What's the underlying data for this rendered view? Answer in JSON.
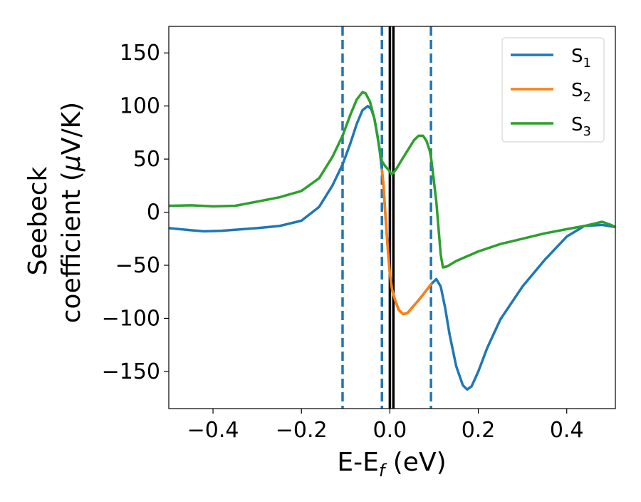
{
  "chart_data": {
    "type": "line",
    "xlabel": {
      "main": "E-E",
      "sub": "f",
      "unit": " (eV)"
    },
    "ylabel": {
      "line1": "Seebeck",
      "line2_pre": "coefficient  (",
      "mu": "μ",
      "line2_post": "V/K)"
    },
    "xlim": [
      -0.5,
      0.51
    ],
    "ylim": [
      -185,
      175
    ],
    "xticks": [
      -0.4,
      -0.2,
      0.0,
      0.2,
      0.4
    ],
    "xtick_labels": [
      "−0.4",
      "−0.2",
      "0.0",
      "0.2",
      "0.4"
    ],
    "yticks": [
      150,
      100,
      50,
      0,
      -50,
      -100,
      -150
    ],
    "ytick_labels": [
      "150",
      "100",
      "50",
      "0",
      "−50",
      "−100",
      "−150"
    ],
    "grid": false,
    "legend_placement": "top-right",
    "vertical_lines": [
      {
        "x": -0.107,
        "style": "dashed",
        "color": "#1f77b4"
      },
      {
        "x": -0.018,
        "style": "dashed",
        "color": "#1f77b4"
      },
      {
        "x": 0.0,
        "style": "solid",
        "color": "#000000"
      },
      {
        "x": 0.008,
        "style": "solid",
        "color": "#000000"
      },
      {
        "x": 0.093,
        "style": "dashed",
        "color": "#1f77b4"
      }
    ],
    "series": [
      {
        "name": "S",
        "sub": "1",
        "color": "#1f77b4",
        "points": [
          [
            -0.5,
            -15
          ],
          [
            -0.45,
            -17
          ],
          [
            -0.42,
            -18
          ],
          [
            -0.38,
            -17.5
          ],
          [
            -0.3,
            -15
          ],
          [
            -0.25,
            -13
          ],
          [
            -0.2,
            -8
          ],
          [
            -0.16,
            5
          ],
          [
            -0.13,
            25
          ],
          [
            -0.107,
            45
          ],
          [
            -0.09,
            64
          ],
          [
            -0.075,
            83
          ],
          [
            -0.062,
            96
          ],
          [
            -0.05,
            100
          ],
          [
            -0.042,
            97
          ],
          [
            -0.035,
            88
          ],
          [
            -0.028,
            72
          ],
          [
            -0.022,
            55
          ],
          [
            -0.018,
            40
          ],
          [
            -0.015,
            28
          ],
          [
            -0.012,
            10
          ],
          [
            -0.008,
            -15
          ],
          [
            -0.004,
            -38
          ],
          [
            0.0,
            -58
          ],
          [
            0.005,
            -73
          ],
          [
            0.012,
            -83
          ],
          [
            0.02,
            -92
          ],
          [
            0.03,
            -96
          ],
          [
            0.04,
            -95
          ],
          [
            0.05,
            -90
          ],
          [
            0.065,
            -83
          ],
          [
            0.08,
            -75
          ],
          [
            0.093,
            -68
          ],
          [
            0.105,
            -63
          ],
          [
            0.115,
            -70
          ],
          [
            0.125,
            -90
          ],
          [
            0.135,
            -115
          ],
          [
            0.15,
            -145
          ],
          [
            0.165,
            -163
          ],
          [
            0.175,
            -167
          ],
          [
            0.185,
            -164
          ],
          [
            0.2,
            -150
          ],
          [
            0.22,
            -128
          ],
          [
            0.25,
            -101
          ],
          [
            0.3,
            -70
          ],
          [
            0.35,
            -45
          ],
          [
            0.4,
            -23
          ],
          [
            0.44,
            -13
          ],
          [
            0.48,
            -12
          ],
          [
            0.51,
            -14
          ]
        ]
      },
      {
        "name": "S",
        "sub": "2",
        "color": "#ff7f0e",
        "points": [
          [
            -0.018,
            40
          ],
          [
            -0.015,
            28
          ],
          [
            -0.012,
            10
          ],
          [
            -0.008,
            -15
          ],
          [
            -0.004,
            -38
          ],
          [
            0.0,
            -58
          ],
          [
            0.005,
            -73
          ],
          [
            0.012,
            -83
          ],
          [
            0.02,
            -92
          ],
          [
            0.03,
            -96
          ],
          [
            0.04,
            -95
          ],
          [
            0.05,
            -90
          ],
          [
            0.065,
            -83
          ],
          [
            0.08,
            -75
          ],
          [
            0.093,
            -68
          ]
        ]
      },
      {
        "name": "S",
        "sub": "3",
        "color": "#2ca02c",
        "points": [
          [
            -0.5,
            6
          ],
          [
            -0.45,
            6.5
          ],
          [
            -0.4,
            5.5
          ],
          [
            -0.35,
            6
          ],
          [
            -0.3,
            10
          ],
          [
            -0.25,
            14
          ],
          [
            -0.2,
            20
          ],
          [
            -0.16,
            32
          ],
          [
            -0.13,
            52
          ],
          [
            -0.107,
            72
          ],
          [
            -0.09,
            91
          ],
          [
            -0.075,
            106
          ],
          [
            -0.062,
            113
          ],
          [
            -0.055,
            112
          ],
          [
            -0.045,
            104
          ],
          [
            -0.035,
            88
          ],
          [
            -0.025,
            64
          ],
          [
            -0.018,
            48
          ],
          [
            -0.01,
            43
          ],
          [
            -0.003,
            40
          ],
          [
            0.003,
            36
          ],
          [
            0.008,
            37
          ],
          [
            0.015,
            41
          ],
          [
            0.025,
            48
          ],
          [
            0.04,
            58
          ],
          [
            0.055,
            68
          ],
          [
            0.065,
            72
          ],
          [
            0.075,
            72
          ],
          [
            0.083,
            67
          ],
          [
            0.09,
            58
          ],
          [
            0.093,
            52
          ],
          [
            0.098,
            35
          ],
          [
            0.105,
            10
          ],
          [
            0.11,
            -15
          ],
          [
            0.115,
            -40
          ],
          [
            0.12,
            -52
          ],
          [
            0.13,
            -51
          ],
          [
            0.15,
            -46
          ],
          [
            0.2,
            -37
          ],
          [
            0.25,
            -30
          ],
          [
            0.3,
            -25
          ],
          [
            0.35,
            -20
          ],
          [
            0.4,
            -16
          ],
          [
            0.44,
            -13
          ],
          [
            0.46,
            -11
          ],
          [
            0.48,
            -9
          ],
          [
            0.5,
            -12
          ],
          [
            0.51,
            -14
          ]
        ]
      }
    ]
  }
}
